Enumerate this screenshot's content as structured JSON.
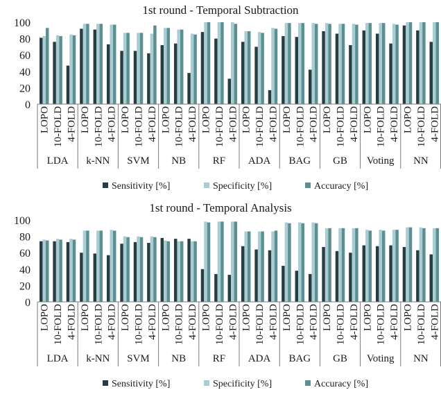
{
  "colors": {
    "sensitivity": "#263d42",
    "specificity": "#a9cdd2",
    "accuracy": "#5b8f92",
    "axis": "#7a7a7a"
  },
  "legend_labels": [
    "Sensitivity [%]",
    "Specificity [%]",
    "Accuracy [%]"
  ],
  "chart_data": [
    {
      "type": "bar",
      "title": "1st round - Temporal Subtraction",
      "ylim": [
        0,
        100
      ],
      "yticks": [
        0,
        20,
        40,
        60,
        80,
        100
      ],
      "groups": [
        "LDA",
        "k-NN",
        "SVM",
        "NB",
        "RF",
        "ADA",
        "BAG",
        "GB",
        "Voting",
        "NN"
      ],
      "subcategories": [
        "LOPO",
        "10-FOLD",
        "4-FOLD"
      ],
      "legend": "bottom",
      "series": [
        {
          "name": "Sensitivity [%]",
          "values": [
            81,
            76,
            47,
            92,
            91,
            73,
            65,
            65,
            62,
            72,
            74,
            38,
            88,
            80,
            31,
            76,
            70,
            17,
            83,
            82,
            42,
            89,
            86,
            72,
            90,
            86,
            74,
            96,
            90,
            76
          ]
        },
        {
          "name": "Specificity [%]",
          "values": [
            83,
            84,
            85,
            98,
            98,
            97,
            87,
            87,
            86,
            93,
            91,
            86,
            100,
            100,
            100,
            89,
            88,
            93,
            99,
            99,
            99,
            99,
            98,
            98,
            99,
            99,
            98,
            100,
            100,
            100
          ]
        },
        {
          "name": "Accuracy [%]",
          "values": [
            93,
            83,
            84,
            98,
            98,
            97,
            87,
            87,
            96,
            93,
            91,
            85,
            100,
            100,
            98,
            89,
            87,
            92,
            99,
            99,
            98,
            98,
            98,
            97,
            99,
            99,
            97,
            100,
            100,
            100
          ]
        }
      ]
    },
    {
      "type": "bar",
      "title": "1st round - Temporal Analysis",
      "ylim": [
        0,
        100
      ],
      "yticks": [
        0,
        20,
        40,
        60,
        80,
        100
      ],
      "groups": [
        "LDA",
        "k-NN",
        "SVM",
        "NB",
        "RF",
        "ADA",
        "BAG",
        "GB",
        "Voting",
        "NN"
      ],
      "subcategories": [
        "LOPO",
        "10-FOLD",
        "4-FOLD"
      ],
      "legend": "bottom",
      "series": [
        {
          "name": "Sensitivity [%]",
          "values": [
            74,
            74,
            73,
            60,
            59,
            57,
            71,
            73,
            72,
            78,
            77,
            77,
            40,
            34,
            33,
            68,
            64,
            63,
            44,
            38,
            34,
            67,
            62,
            60,
            69,
            68,
            69,
            67,
            63,
            58
          ]
        },
        {
          "name": "Specificity [%]",
          "values": [
            76,
            77,
            77,
            87,
            87,
            88,
            80,
            80,
            80,
            75,
            74,
            74,
            98,
            98,
            98,
            86,
            86,
            86,
            97,
            97,
            97,
            90,
            90,
            90,
            88,
            88,
            88,
            91,
            91,
            90
          ]
        },
        {
          "name": "Accuracy [%]",
          "values": [
            75,
            76,
            76,
            87,
            87,
            87,
            79,
            79,
            79,
            74,
            74,
            74,
            97,
            98,
            98,
            86,
            86,
            87,
            96,
            96,
            96,
            90,
            90,
            90,
            87,
            87,
            88,
            91,
            90,
            90
          ]
        }
      ]
    }
  ]
}
